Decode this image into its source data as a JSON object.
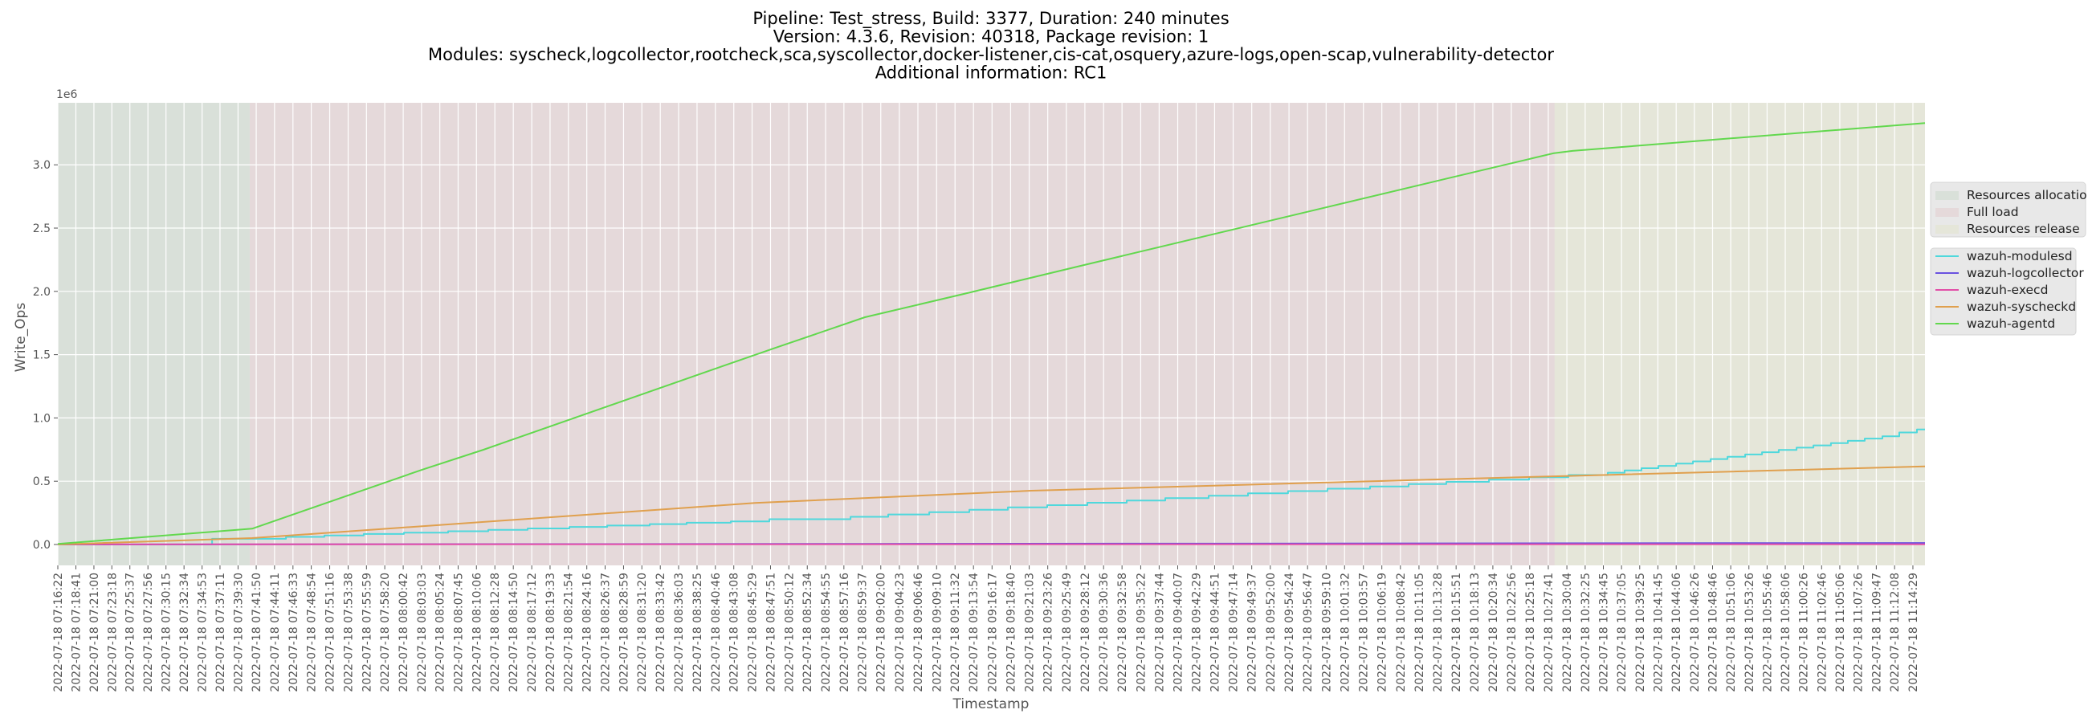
{
  "chart_data": {
    "type": "line",
    "title_lines": [
      "Pipeline: Test_stress, Build: 3377, Duration: 240 minutes",
      "Version: 4.3.6, Revision: 40318, Package revision: 1",
      "Modules: syscheck,logcollector,rootcheck,sca,syscollector,docker-listener,cis-cat,osquery,azure-logs,open-scap,vulnerability-detector",
      "Additional information: RC1"
    ],
    "xlabel": "Timestamp",
    "ylabel": "Write_Ops",
    "y_offset_label": "1e6",
    "ylim": [
      -165000,
      3490000
    ],
    "xlim": [
      "2022-07-18 07:16:22",
      "2022-07-18 11:16:02"
    ],
    "grid": true,
    "yticks": [
      0,
      500000,
      1000000,
      1500000,
      2000000,
      2500000,
      3000000
    ],
    "ytick_labels": [
      "0.0",
      "0.5",
      "1.0",
      "1.5",
      "2.0",
      "2.5",
      "3.0"
    ],
    "xtick_labels": [
      "2022-07-18 07:16:22",
      "2022-07-18 07:18:41",
      "2022-07-18 07:21:00",
      "2022-07-18 07:23:18",
      "2022-07-18 07:25:37",
      "2022-07-18 07:27:56",
      "2022-07-18 07:30:15",
      "2022-07-18 07:32:34",
      "2022-07-18 07:34:53",
      "2022-07-18 07:37:11",
      "2022-07-18 07:39:30",
      "2022-07-18 07:41:50",
      "2022-07-18 07:44:11",
      "2022-07-18 07:46:33",
      "2022-07-18 07:48:54",
      "2022-07-18 07:51:16",
      "2022-07-18 07:53:38",
      "2022-07-18 07:55:59",
      "2022-07-18 07:58:20",
      "2022-07-18 08:00:42",
      "2022-07-18 08:03:03",
      "2022-07-18 08:05:24",
      "2022-07-18 08:07:45",
      "2022-07-18 08:10:06",
      "2022-07-18 08:12:28",
      "2022-07-18 08:14:50",
      "2022-07-18 08:17:12",
      "2022-07-18 08:19:33",
      "2022-07-18 08:21:54",
      "2022-07-18 08:24:16",
      "2022-07-18 08:26:37",
      "2022-07-18 08:28:59",
      "2022-07-18 08:31:20",
      "2022-07-18 08:33:42",
      "2022-07-18 08:36:03",
      "2022-07-18 08:38:25",
      "2022-07-18 08:40:46",
      "2022-07-18 08:43:08",
      "2022-07-18 08:45:29",
      "2022-07-18 08:47:51",
      "2022-07-18 08:50:12",
      "2022-07-18 08:52:34",
      "2022-07-18 08:54:55",
      "2022-07-18 08:57:16",
      "2022-07-18 08:59:37",
      "2022-07-18 09:02:00",
      "2022-07-18 09:04:23",
      "2022-07-18 09:06:46",
      "2022-07-18 09:09:10",
      "2022-07-18 09:11:32",
      "2022-07-18 09:13:54",
      "2022-07-18 09:16:17",
      "2022-07-18 09:18:40",
      "2022-07-18 09:21:03",
      "2022-07-18 09:23:26",
      "2022-07-18 09:25:49",
      "2022-07-18 09:28:12",
      "2022-07-18 09:30:36",
      "2022-07-18 09:32:58",
      "2022-07-18 09:35:22",
      "2022-07-18 09:37:44",
      "2022-07-18 09:40:07",
      "2022-07-18 09:42:29",
      "2022-07-18 09:44:51",
      "2022-07-18 09:47:14",
      "2022-07-18 09:49:37",
      "2022-07-18 09:52:00",
      "2022-07-18 09:54:24",
      "2022-07-18 09:56:47",
      "2022-07-18 09:59:10",
      "2022-07-18 10:01:32",
      "2022-07-18 10:03:57",
      "2022-07-18 10:06:19",
      "2022-07-18 10:08:42",
      "2022-07-18 10:11:05",
      "2022-07-18 10:13:28",
      "2022-07-18 10:15:51",
      "2022-07-18 10:18:13",
      "2022-07-18 10:20:34",
      "2022-07-18 10:22:56",
      "2022-07-18 10:25:18",
      "2022-07-18 10:27:41",
      "2022-07-18 10:30:04",
      "2022-07-18 10:32:25",
      "2022-07-18 10:34:45",
      "2022-07-18 10:37:05",
      "2022-07-18 10:39:25",
      "2022-07-18 10:41:45",
      "2022-07-18 10:44:06",
      "2022-07-18 10:46:26",
      "2022-07-18 10:48:46",
      "2022-07-18 10:51:06",
      "2022-07-18 10:53:26",
      "2022-07-18 10:55:46",
      "2022-07-18 10:58:06",
      "2022-07-18 11:00:26",
      "2022-07-18 11:02:46",
      "2022-07-18 11:05:06",
      "2022-07-18 11:07:26",
      "2022-07-18 11:09:47",
      "2022-07-18 11:12:08",
      "2022-07-18 11:14:29"
    ],
    "phases": [
      {
        "name": "Resources allocation",
        "start": "2022-07-18 07:16:22",
        "end": "2022-07-18 07:41:00",
        "color": "#d9e0d9"
      },
      {
        "name": "Full load",
        "start": "2022-07-18 07:41:00",
        "end": "2022-07-18 10:28:30",
        "color": "#e5d9da"
      },
      {
        "name": "Resources release",
        "start": "2022-07-18 10:28:30",
        "end": "2022-07-18 11:16:02",
        "color": "#e5e6d9"
      }
    ],
    "legend_placement": "right",
    "series": [
      {
        "name": "wazuh-modulesd",
        "color": "#4fd8dc",
        "drawstyle": "steps-post",
        "points": [
          [
            "2022-07-18 07:16:22",
            0
          ],
          [
            "2022-07-18 07:36:10",
            45000
          ],
          [
            "2022-07-18 07:45:39",
            60000
          ],
          [
            "2022-07-18 07:50:35",
            71000
          ],
          [
            "2022-07-18 07:55:38",
            83000
          ],
          [
            "2022-07-18 08:00:48",
            94000
          ],
          [
            "2022-07-18 08:06:28",
            105000
          ],
          [
            "2022-07-18 08:11:37",
            116000
          ],
          [
            "2022-07-18 08:16:40",
            127000
          ],
          [
            "2022-07-18 08:22:02",
            139000
          ],
          [
            "2022-07-18 08:26:53",
            150000
          ],
          [
            "2022-07-18 08:32:20",
            161000
          ],
          [
            "2022-07-18 08:37:05",
            172000
          ],
          [
            "2022-07-18 08:42:45",
            183000
          ],
          [
            "2022-07-18 08:47:42",
            200000
          ],
          [
            "2022-07-18 08:58:07",
            219000
          ],
          [
            "2022-07-18 09:02:57",
            237000
          ],
          [
            "2022-07-18 09:08:13",
            256000
          ],
          [
            "2022-07-18 09:13:22",
            274000
          ],
          [
            "2022-07-18 09:18:19",
            293000
          ],
          [
            "2022-07-18 09:23:22",
            311000
          ],
          [
            "2022-07-18 09:28:31",
            330000
          ],
          [
            "2022-07-18 09:33:34",
            348000
          ],
          [
            "2022-07-18 09:38:31",
            367000
          ],
          [
            "2022-07-18 09:44:05",
            385000
          ],
          [
            "2022-07-18 09:49:08",
            404000
          ],
          [
            "2022-07-18 09:54:17",
            422000
          ],
          [
            "2022-07-18 09:59:20",
            441000
          ],
          [
            "2022-07-18 10:04:48",
            459000
          ],
          [
            "2022-07-18 10:09:45",
            478000
          ],
          [
            "2022-07-18 10:14:36",
            495000
          ],
          [
            "2022-07-18 10:20:04",
            513000
          ],
          [
            "2022-07-18 10:25:13",
            531000
          ],
          [
            "2022-07-18 10:30:16",
            549000
          ],
          [
            "2022-07-18 10:35:19",
            567000
          ],
          [
            "2022-07-18 10:37:29",
            585000
          ],
          [
            "2022-07-18 10:39:39",
            603000
          ],
          [
            "2022-07-18 10:41:49",
            621000
          ],
          [
            "2022-07-18 10:44:05",
            639000
          ],
          [
            "2022-07-18 10:46:15",
            657000
          ],
          [
            "2022-07-18 10:48:31",
            675000
          ],
          [
            "2022-07-18 10:50:41",
            693000
          ],
          [
            "2022-07-18 10:52:57",
            711000
          ],
          [
            "2022-07-18 10:55:07",
            729000
          ],
          [
            "2022-07-18 10:57:16",
            747000
          ],
          [
            "2022-07-18 10:59:33",
            765000
          ],
          [
            "2022-07-18 11:01:43",
            783000
          ],
          [
            "2022-07-18 11:03:58",
            801000
          ],
          [
            "2022-07-18 11:06:08",
            819000
          ],
          [
            "2022-07-18 11:08:18",
            837000
          ],
          [
            "2022-07-18 11:10:34",
            855000
          ],
          [
            "2022-07-18 11:12:44",
            885000
          ],
          [
            "2022-07-18 11:15:00",
            909000
          ],
          [
            "2022-07-18 11:16:02",
            909000
          ]
        ]
      },
      {
        "name": "wazuh-logcollector",
        "color": "#6a52e0",
        "drawstyle": "line",
        "points": [
          [
            "2022-07-18 07:16:22",
            0
          ],
          [
            "2022-07-18 09:00:00",
            5000
          ],
          [
            "2022-07-18 11:16:02",
            12000
          ]
        ]
      },
      {
        "name": "wazuh-execd",
        "color": "#e24fa8",
        "drawstyle": "line",
        "points": [
          [
            "2022-07-18 07:16:22",
            1000
          ],
          [
            "2022-07-18 11:16:02",
            2000
          ]
        ]
      },
      {
        "name": "wazuh-syscheckd",
        "color": "#e0a04e",
        "drawstyle": "line",
        "points": [
          [
            "2022-07-18 07:16:22",
            0
          ],
          [
            "2022-07-18 07:41:19",
            51000
          ],
          [
            "2022-07-18 08:45:51",
            328000
          ],
          [
            "2022-07-18 09:21:18",
            425000
          ],
          [
            "2022-07-18 10:14:30",
            516000
          ],
          [
            "2022-07-18 10:28:25",
            539000
          ],
          [
            "2022-07-18 11:16:02",
            617000
          ]
        ]
      },
      {
        "name": "wazuh-agentd",
        "color": "#62d84e",
        "drawstyle": "line",
        "points": [
          [
            "2022-07-18 07:16:22",
            5000
          ],
          [
            "2022-07-18 07:41:19",
            125000
          ],
          [
            "2022-07-18 08:03:16",
            594000
          ],
          [
            "2022-07-18 08:11:00",
            749000
          ],
          [
            "2022-07-18 08:41:43",
            1410000
          ],
          [
            "2022-07-18 08:48:38",
            1557000
          ],
          [
            "2022-07-18 08:59:58",
            1796000
          ],
          [
            "2022-07-18 09:12:39",
            1980000
          ],
          [
            "2022-07-18 09:28:06",
            2208000
          ],
          [
            "2022-07-18 10:14:30",
            2889000
          ],
          [
            "2022-07-18 10:28:25",
            3092000
          ],
          [
            "2022-07-18 10:30:47",
            3110000
          ],
          [
            "2022-07-18 11:16:02",
            3330000
          ]
        ]
      }
    ]
  }
}
